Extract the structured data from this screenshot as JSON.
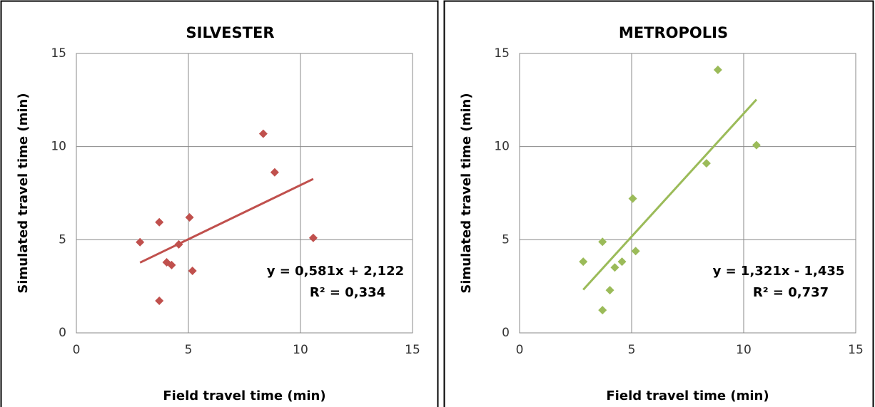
{
  "chart_data": [
    {
      "type": "scatter",
      "title": "SILVESTER",
      "xlabel": "Field travel time (min)",
      "ylabel": "Simulated travel time (min)",
      "x": [
        2.84,
        3.7,
        3.7,
        4.03,
        4.25,
        4.57,
        5.05,
        5.18,
        8.34,
        8.85,
        10.57
      ],
      "y": [
        4.87,
        5.94,
        1.72,
        3.79,
        3.64,
        4.75,
        6.2,
        3.33,
        10.69,
        8.62,
        5.1
      ],
      "color": "#c0504d",
      "trendline": {
        "slope": 0.581,
        "intercept": 2.122,
        "equation": "y = 0,581x + 2,122",
        "r2_label": "R² = 0,334"
      },
      "xlim": [
        0,
        15
      ],
      "ylim": [
        0,
        15
      ],
      "xticks": [
        0,
        5,
        10,
        15
      ],
      "yticks": [
        0,
        5,
        10,
        15
      ],
      "grid": true
    },
    {
      "type": "scatter",
      "title": "METROPOLIS",
      "xlabel": "Field travel time (min)",
      "ylabel": "Simulated travel time (min)",
      "x": [
        2.84,
        3.7,
        3.7,
        4.03,
        4.25,
        4.57,
        5.05,
        5.18,
        8.34,
        8.85,
        10.57
      ],
      "y": [
        3.82,
        4.89,
        1.22,
        2.29,
        3.51,
        3.82,
        7.21,
        4.39,
        9.1,
        14.12,
        10.08
      ],
      "color": "#9bbb59",
      "trendline": {
        "slope": 1.321,
        "intercept": -1.435,
        "equation": "y = 1,321x - 1,435",
        "r2_label": "R² = 0,737"
      },
      "xlim": [
        0,
        15
      ],
      "ylim": [
        0,
        15
      ],
      "xticks": [
        0,
        5,
        10,
        15
      ],
      "yticks": [
        0,
        5,
        10,
        15
      ],
      "grid": true
    }
  ]
}
